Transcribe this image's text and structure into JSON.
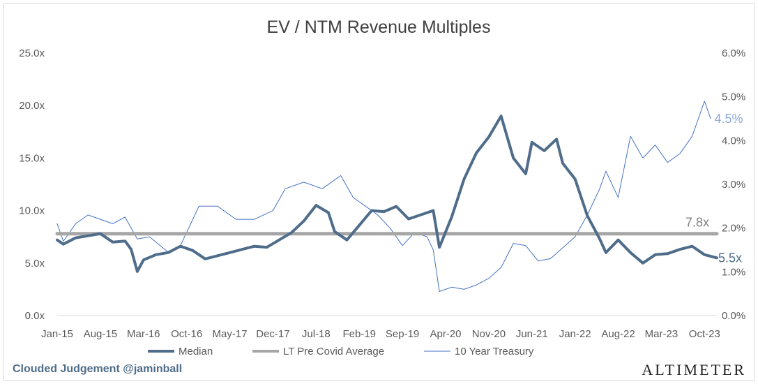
{
  "chart_data": {
    "type": "line",
    "title": "EV / NTM Revenue Multiples",
    "x_tick_labels": [
      "Jan-15",
      "Aug-15",
      "Mar-16",
      "Oct-16",
      "May-17",
      "Dec-17",
      "Jul-18",
      "Feb-19",
      "Sep-19",
      "Apr-20",
      "Nov-20",
      "Jun-21",
      "Jan-22",
      "Aug-22",
      "Mar-23",
      "Oct-23"
    ],
    "x_tick_dates": [
      "2015-01",
      "2015-08",
      "2016-03",
      "2016-10",
      "2017-05",
      "2017-12",
      "2018-07",
      "2019-02",
      "2019-09",
      "2020-04",
      "2020-11",
      "2021-06",
      "2022-01",
      "2022-08",
      "2023-03",
      "2023-10"
    ],
    "x_range": [
      "2015-01",
      "2023-12"
    ],
    "y_left": {
      "ticks": [
        "0.0x",
        "5.0x",
        "10.0x",
        "15.0x",
        "20.0x",
        "25.0x"
      ],
      "range": [
        0,
        25
      ]
    },
    "y_right": {
      "ticks": [
        "0.0%",
        "1.0%",
        "2.0%",
        "3.0%",
        "4.0%",
        "5.0%",
        "6.0%"
      ],
      "range": [
        0,
        6
      ]
    },
    "grid": false,
    "legend_position": "bottom",
    "series": [
      {
        "name": "Median",
        "axis": "left",
        "color": "#4f6d8a",
        "line_width": "thick",
        "end_label": "5.5x",
        "points": [
          [
            "2015-01",
            7.2
          ],
          [
            "2015-02",
            6.8
          ],
          [
            "2015-04",
            7.4
          ],
          [
            "2015-06",
            7.6
          ],
          [
            "2015-08",
            7.8
          ],
          [
            "2015-10",
            7.0
          ],
          [
            "2015-12",
            7.1
          ],
          [
            "2016-01",
            6.3
          ],
          [
            "2016-02",
            4.2
          ],
          [
            "2016-03",
            5.3
          ],
          [
            "2016-05",
            5.8
          ],
          [
            "2016-07",
            6.0
          ],
          [
            "2016-09",
            6.6
          ],
          [
            "2016-11",
            6.2
          ],
          [
            "2017-01",
            5.4
          ],
          [
            "2017-03",
            5.7
          ],
          [
            "2017-05",
            6.0
          ],
          [
            "2017-07",
            6.3
          ],
          [
            "2017-09",
            6.6
          ],
          [
            "2017-11",
            6.5
          ],
          [
            "2018-01",
            7.2
          ],
          [
            "2018-03",
            7.9
          ],
          [
            "2018-05",
            9.0
          ],
          [
            "2018-07",
            10.5
          ],
          [
            "2018-09",
            9.8
          ],
          [
            "2018-10",
            8.0
          ],
          [
            "2018-12",
            7.2
          ],
          [
            "2019-02",
            8.6
          ],
          [
            "2019-04",
            10.0
          ],
          [
            "2019-06",
            9.9
          ],
          [
            "2019-08",
            10.4
          ],
          [
            "2019-10",
            9.2
          ],
          [
            "2019-12",
            9.6
          ],
          [
            "2020-02",
            10.0
          ],
          [
            "2020-03",
            6.5
          ],
          [
            "2020-05",
            9.4
          ],
          [
            "2020-07",
            13.0
          ],
          [
            "2020-09",
            15.5
          ],
          [
            "2020-11",
            17.0
          ],
          [
            "2021-01",
            19.0
          ],
          [
            "2021-03",
            15.0
          ],
          [
            "2021-05",
            13.5
          ],
          [
            "2021-06",
            16.5
          ],
          [
            "2021-08",
            15.7
          ],
          [
            "2021-10",
            16.8
          ],
          [
            "2021-11",
            14.5
          ],
          [
            "2022-01",
            13.0
          ],
          [
            "2022-03",
            9.5
          ],
          [
            "2022-05",
            7.3
          ],
          [
            "2022-06",
            6.0
          ],
          [
            "2022-08",
            7.2
          ],
          [
            "2022-10",
            6.0
          ],
          [
            "2022-12",
            5.0
          ],
          [
            "2023-02",
            5.8
          ],
          [
            "2023-04",
            5.9
          ],
          [
            "2023-06",
            6.3
          ],
          [
            "2023-08",
            6.6
          ],
          [
            "2023-10",
            5.8
          ],
          [
            "2023-12",
            5.5
          ]
        ]
      },
      {
        "name": "LT Pre Covid Average",
        "axis": "left",
        "color": "#a6a6a6",
        "line_width": "thick",
        "end_label": "7.8x",
        "points": [
          [
            "2015-01",
            7.8
          ],
          [
            "2023-12",
            7.8
          ]
        ]
      },
      {
        "name": "10 Year Treasury",
        "axis": "right",
        "color": "#4472c4",
        "line_width": "thin",
        "end_label": "4.5%",
        "points": [
          [
            "2015-01",
            2.1
          ],
          [
            "2015-02",
            1.7
          ],
          [
            "2015-04",
            2.1
          ],
          [
            "2015-06",
            2.3
          ],
          [
            "2015-08",
            2.2
          ],
          [
            "2015-10",
            2.1
          ],
          [
            "2015-12",
            2.25
          ],
          [
            "2016-02",
            1.75
          ],
          [
            "2016-04",
            1.8
          ],
          [
            "2016-07",
            1.45
          ],
          [
            "2016-09",
            1.6
          ],
          [
            "2016-11",
            2.2
          ],
          [
            "2016-12",
            2.5
          ],
          [
            "2017-03",
            2.5
          ],
          [
            "2017-06",
            2.2
          ],
          [
            "2017-09",
            2.2
          ],
          [
            "2017-12",
            2.4
          ],
          [
            "2018-02",
            2.9
          ],
          [
            "2018-05",
            3.05
          ],
          [
            "2018-08",
            2.9
          ],
          [
            "2018-11",
            3.2
          ],
          [
            "2019-01",
            2.7
          ],
          [
            "2019-03",
            2.5
          ],
          [
            "2019-05",
            2.3
          ],
          [
            "2019-07",
            2.0
          ],
          [
            "2019-09",
            1.6
          ],
          [
            "2019-11",
            1.9
          ],
          [
            "2020-01",
            1.8
          ],
          [
            "2020-02",
            1.5
          ],
          [
            "2020-03",
            0.55
          ],
          [
            "2020-05",
            0.65
          ],
          [
            "2020-07",
            0.6
          ],
          [
            "2020-09",
            0.7
          ],
          [
            "2020-11",
            0.85
          ],
          [
            "2021-01",
            1.1
          ],
          [
            "2021-03",
            1.65
          ],
          [
            "2021-05",
            1.6
          ],
          [
            "2021-07",
            1.25
          ],
          [
            "2021-09",
            1.3
          ],
          [
            "2021-11",
            1.55
          ],
          [
            "2022-01",
            1.8
          ],
          [
            "2022-03",
            2.3
          ],
          [
            "2022-05",
            2.9
          ],
          [
            "2022-06",
            3.3
          ],
          [
            "2022-08",
            2.7
          ],
          [
            "2022-10",
            4.1
          ],
          [
            "2022-12",
            3.6
          ],
          [
            "2023-02",
            3.9
          ],
          [
            "2023-04",
            3.5
          ],
          [
            "2023-06",
            3.7
          ],
          [
            "2023-08",
            4.1
          ],
          [
            "2023-10",
            4.9
          ],
          [
            "2023-11",
            4.5
          ]
        ]
      }
    ]
  },
  "footer": {
    "credit": "Clouded Judgement @jaminball",
    "brand": "Altimeter"
  }
}
